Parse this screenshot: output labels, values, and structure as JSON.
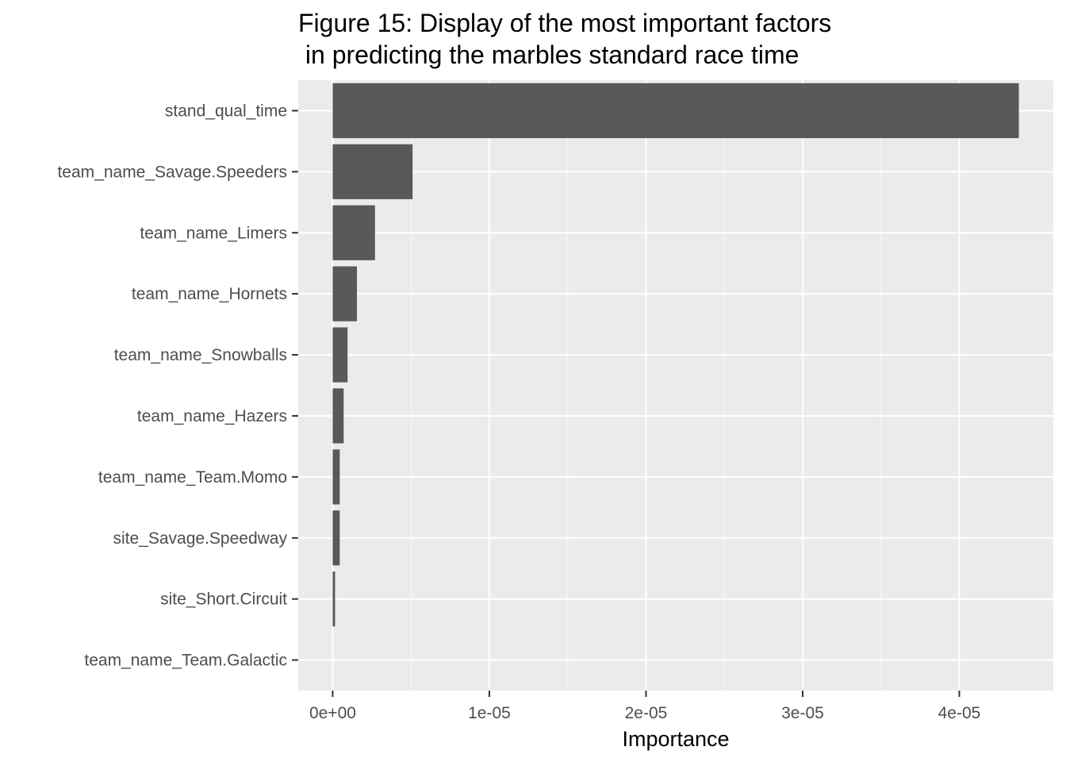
{
  "chart_data": {
    "type": "bar",
    "orientation": "horizontal",
    "title": [
      "Figure 15: Display of the most important factors",
      " in predicting the marbles standard race time"
    ],
    "xlabel": "Importance",
    "ylabel": "",
    "categories": [
      "stand_qual_time",
      "team_name_Savage.Speeders",
      "team_name_Limers",
      "team_name_Hornets",
      "team_name_Snowballs",
      "team_name_Hazers",
      "team_name_Team.Momo",
      "site_Savage.Speedway",
      "site_Short.Circuit",
      "team_name_Team.Galactic"
    ],
    "values": [
      4.38e-05,
      5.1e-06,
      2.7e-06,
      1.55e-06,
      9.5e-07,
      7e-07,
      4.5e-07,
      4.5e-07,
      1.5e-07,
      0
    ],
    "xlim": [
      -2.2e-06,
      4.6e-05
    ],
    "xticks": [
      0,
      1e-05,
      2e-05,
      3e-05,
      4e-05
    ],
    "xtick_labels": [
      "0e+00",
      "1e-05",
      "2e-05",
      "3e-05",
      "4e-05"
    ],
    "grid": true,
    "legend": "none",
    "colors": {
      "bar": "#595959",
      "panel": "#ebebeb",
      "grid_major": "#ffffff",
      "text": "#4d4d4d"
    }
  }
}
